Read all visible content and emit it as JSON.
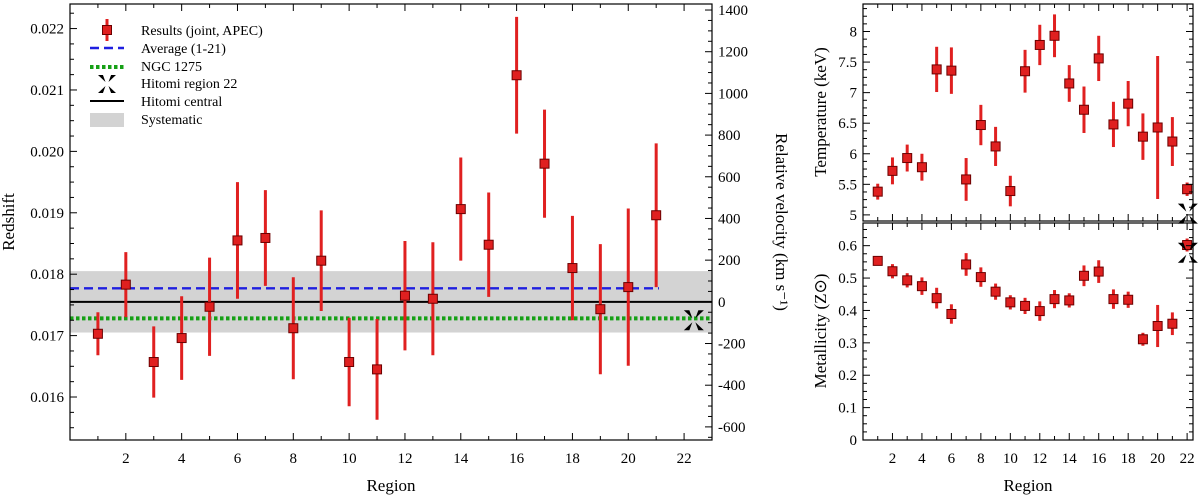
{
  "colors": {
    "marker": "#e02020",
    "marker_edge": "#6b0000",
    "average": "#1f1fe0",
    "ngc": "#16a016",
    "hitomi": "#000000",
    "systematic": "#d3d3d3"
  },
  "chart_data": [
    {
      "type": "scatter",
      "xlabel": "Region",
      "ylabel": "Redshift",
      "y2label": "Relative velocity (km s⁻¹)",
      "xlim": [
        0,
        23
      ],
      "ylim": [
        0.0153,
        0.0224
      ],
      "xticks": [
        2,
        4,
        6,
        8,
        10,
        12,
        14,
        16,
        18,
        20,
        22
      ],
      "yticks": [
        0.016,
        0.017,
        0.018,
        0.019,
        0.02,
        0.021,
        0.022
      ],
      "ytick_labels": [
        "0.016",
        "0.017",
        "0.018",
        "0.019",
        "0.020",
        "0.021",
        "0.022"
      ],
      "y2ticks": [
        -600,
        -400,
        -200,
        0,
        200,
        400,
        600,
        800,
        1000,
        1200,
        1400
      ],
      "y2_zero_redshift": 0.01755,
      "series": [
        {
          "name": "Results (joint, APEC)",
          "x": [
            1,
            2,
            3,
            4,
            5,
            6,
            7,
            8,
            9,
            10,
            11,
            12,
            13,
            14,
            15,
            16,
            17,
            18,
            19,
            20,
            21
          ],
          "y": [
            0.01703,
            0.01783,
            0.01657,
            0.01696,
            0.01747,
            0.01855,
            0.01859,
            0.01712,
            0.01822,
            0.01657,
            0.01645,
            0.01765,
            0.0176,
            0.01906,
            0.01848,
            0.02124,
            0.0198,
            0.0181,
            0.01743,
            0.01779,
            0.01896
          ],
          "err": [
            0.00035,
            0.00053,
            0.00058,
            0.00068,
            0.0008,
            0.00095,
            0.00078,
            0.00083,
            0.00082,
            0.00072,
            0.00082,
            0.00089,
            0.00092,
            0.00084,
            0.00085,
            0.00095,
            0.00088,
            0.00085,
            0.00106,
            0.00128,
            0.00117
          ]
        }
      ],
      "hitomi_region_22": {
        "x": 22.35,
        "y": 0.01725
      },
      "lines": [
        {
          "name": "Average (1-21)",
          "y": 0.01777,
          "style": "dashed"
        },
        {
          "name": "NGC 1275",
          "y": 0.01728,
          "style": "dotted"
        },
        {
          "name": "Hitomi central",
          "y": 0.01755,
          "style": "solid"
        }
      ],
      "systematic_band": {
        "name": "Systematic",
        "y": [
          0.01705,
          0.01805
        ]
      },
      "legend": [
        "Results (joint, APEC)",
        "Average (1-21)",
        "NGC 1275",
        "Hitomi region 22",
        "Hitomi central",
        "Systematic"
      ],
      "legend_position": "top-left",
      "grid": false
    },
    {
      "type": "scatter",
      "xlabel": "Region",
      "ylabel": "Temperature (keV)",
      "xlim": [
        0,
        22.4
      ],
      "ylim": [
        4.9,
        8.45
      ],
      "xticks": [
        2,
        4,
        6,
        8,
        10,
        12,
        14,
        16,
        18,
        20,
        22
      ],
      "yticks": [
        5,
        5.5,
        6,
        6.5,
        7,
        7.5,
        8
      ],
      "ytick_labels": [
        "5",
        "5.5",
        "6",
        "6.5",
        "7",
        "7.5",
        "8"
      ],
      "series": [
        {
          "x": [
            1,
            2,
            3,
            4,
            5,
            6,
            7,
            8,
            9,
            10,
            11,
            12,
            13,
            14,
            15,
            16,
            17,
            18,
            19,
            20,
            21,
            22
          ],
          "y": [
            5.38,
            5.72,
            5.93,
            5.78,
            7.38,
            7.36,
            5.58,
            6.47,
            6.12,
            5.39,
            7.35,
            7.78,
            7.93,
            7.15,
            6.72,
            7.56,
            6.48,
            6.82,
            6.28,
            6.43,
            6.2,
            5.42
          ],
          "err": [
            0.13,
            0.22,
            0.22,
            0.22,
            0.37,
            0.38,
            0.35,
            0.33,
            0.32,
            0.25,
            0.35,
            0.33,
            0.35,
            0.3,
            0.38,
            0.37,
            0.37,
            0.37,
            0.38,
            1.17,
            0.4,
            0.11
          ]
        }
      ],
      "hitomi_region_22": {
        "x": 22.05,
        "y": 5.02
      },
      "grid": false
    },
    {
      "type": "scatter",
      "xlabel": "Region",
      "ylabel": "Metallicity (Z⊙)",
      "xlim": [
        0,
        22.4
      ],
      "ylim": [
        0,
        0.67
      ],
      "xticks": [
        2,
        4,
        6,
        8,
        10,
        12,
        14,
        16,
        18,
        20,
        22
      ],
      "yticks": [
        0,
        0.1,
        0.2,
        0.3,
        0.4,
        0.5,
        0.6
      ],
      "ytick_labels": [
        "0",
        "0.1",
        "0.2",
        "0.3",
        "0.4",
        "0.5",
        "0.6"
      ],
      "series": [
        {
          "x": [
            1,
            2,
            3,
            4,
            5,
            6,
            7,
            8,
            9,
            10,
            11,
            12,
            13,
            14,
            15,
            16,
            17,
            18,
            19,
            20,
            21,
            22
          ],
          "y": [
            0.553,
            0.521,
            0.493,
            0.475,
            0.438,
            0.389,
            0.542,
            0.503,
            0.458,
            0.425,
            0.414,
            0.398,
            0.435,
            0.431,
            0.507,
            0.52,
            0.435,
            0.433,
            0.311,
            0.352,
            0.359,
            0.602
          ],
          "err": [
            0.013,
            0.022,
            0.022,
            0.027,
            0.032,
            0.03,
            0.035,
            0.03,
            0.025,
            0.022,
            0.025,
            0.03,
            0.028,
            0.022,
            0.032,
            0.035,
            0.03,
            0.025,
            0.02,
            0.065,
            0.035,
            0.02
          ]
        }
      ],
      "hitomi_region_22": {
        "x": 22.05,
        "y": 0.578
      },
      "grid": false
    }
  ]
}
